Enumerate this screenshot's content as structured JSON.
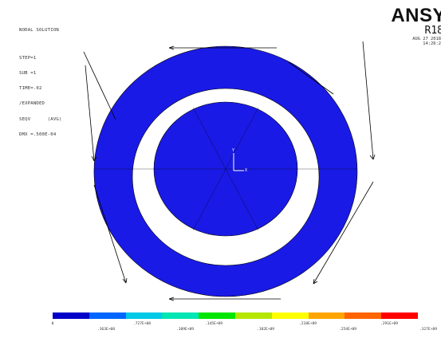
{
  "viewport": {
    "title": "NODAL SOLUTION",
    "info_lines": [
      "STEP=1",
      "SUB =1",
      "TIME=.02",
      "/EXPANDED",
      "SEQV      (AVG)",
      "DMX =.500E-04"
    ]
  },
  "logo": {
    "brand": "ANSY",
    "release": "R18",
    "date": "AUG 27 2018",
    "time": "14:26:2"
  },
  "triad": {
    "y_label": "Y",
    "x_label": "X"
  },
  "colors": {
    "contour": "#1a1ae6",
    "outline": "#000000",
    "legend_bands": [
      "#0000c8",
      "#0066ff",
      "#00c8e6",
      "#00e6b4",
      "#00e600",
      "#b4e600",
      "#ffff00",
      "#ffa500",
      "#ff6400",
      "#ff0000"
    ]
  },
  "legend": {
    "labels_top": [
      "0",
      ".727E+08",
      ".145E+09",
      ".218E+09",
      ".291E+09"
    ],
    "labels_bottom": [
      ".363E+08",
      ".109E+09",
      ".182E+09",
      ".254E+09",
      ".327E+09"
    ]
  }
}
